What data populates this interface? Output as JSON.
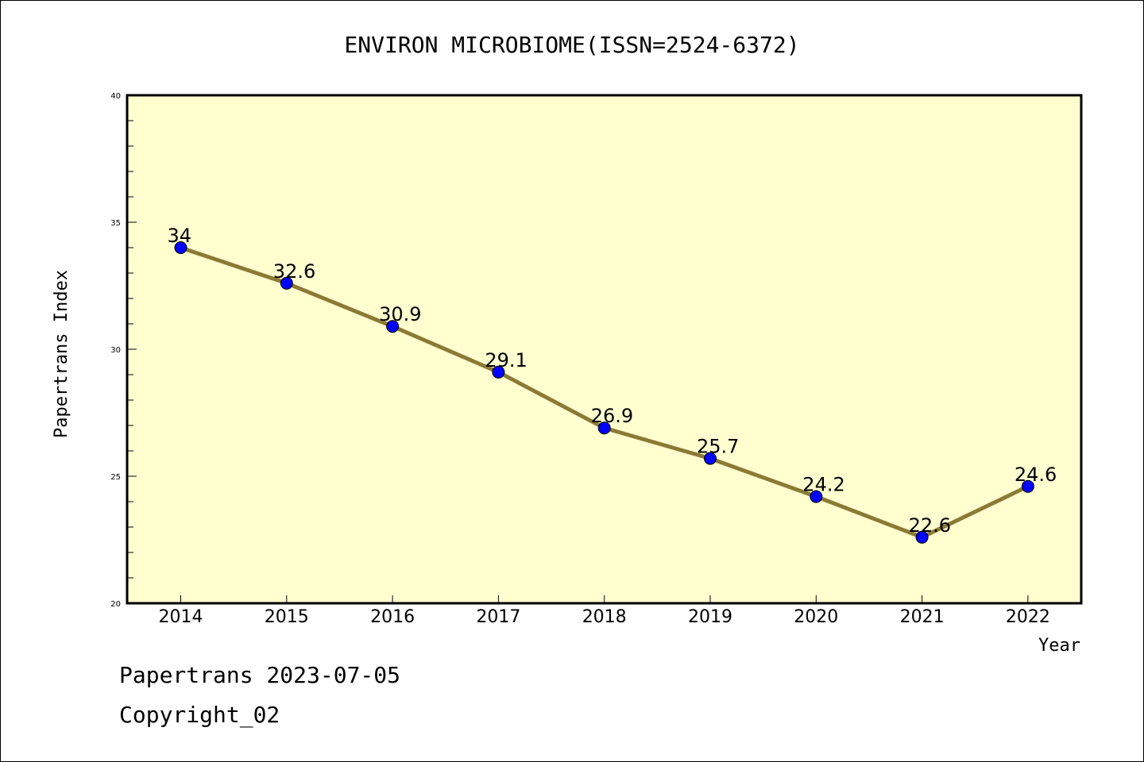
{
  "chart_data": {
    "type": "line",
    "title": "ENVIRON MICROBIOME(ISSN=2524-6372)",
    "xlabel": "Year",
    "ylabel": "Papertrans Index",
    "categories": [
      "2014",
      "2015",
      "2016",
      "2017",
      "2018",
      "2019",
      "2020",
      "2021",
      "2022"
    ],
    "series": [
      {
        "values": [
          34,
          32.6,
          30.9,
          29.1,
          26.9,
          25.7,
          24.2,
          22.6,
          24.6
        ]
      }
    ],
    "data_labels": [
      "34",
      "32.6",
      "30.9",
      "29.1",
      "26.9",
      "25.7",
      "24.2",
      "22.6",
      "24.6"
    ],
    "ylim": [
      20,
      40
    ],
    "yticks": [
      20,
      25,
      30,
      35,
      40
    ],
    "grid": false,
    "colors": {
      "plot_background": "#ffffd0",
      "line": "#8b7a35",
      "marker": "#0000ff"
    }
  },
  "footer": {
    "line1": "Papertrans 2023-07-05",
    "line2": "Copyright_02"
  }
}
